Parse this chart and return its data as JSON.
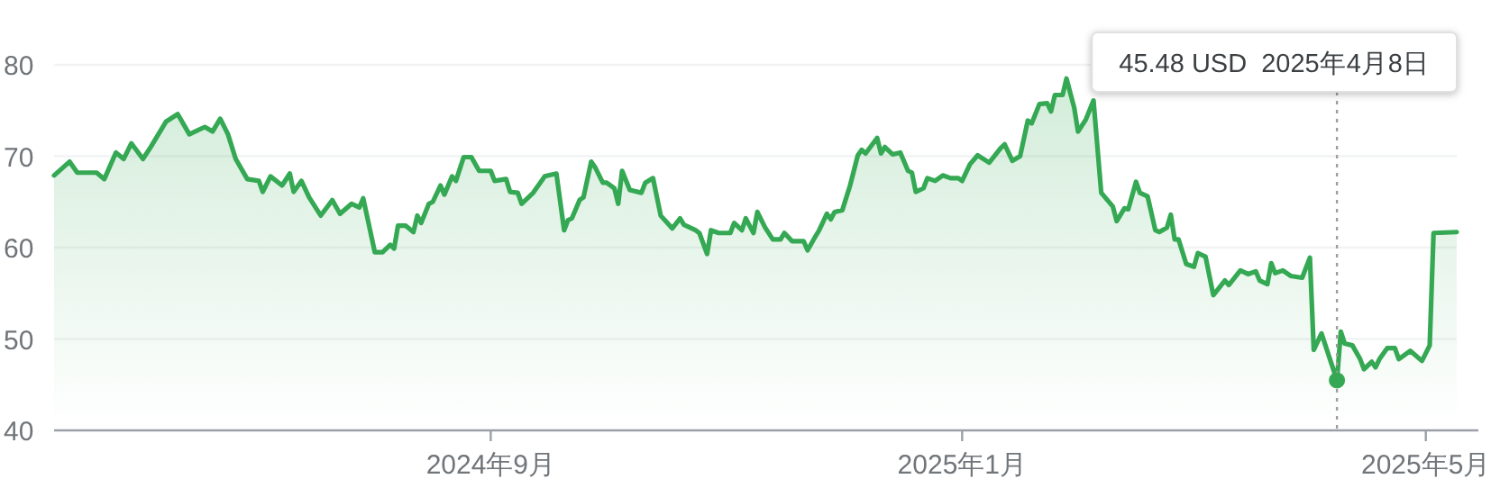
{
  "chart_data": {
    "type": "area",
    "xlim": [
      "2024-05-11",
      "2025-05-09"
    ],
    "ylim": [
      40,
      80
    ],
    "yticks": [
      40,
      50,
      60,
      70,
      80
    ],
    "xticks": [
      {
        "value": "2024-09-01",
        "label": "2024年9月"
      },
      {
        "value": "2025-01-01",
        "label": "2025年1月"
      },
      {
        "value": "2025-05-01",
        "label": "2025年5月"
      }
    ],
    "grid": "y",
    "ref_lines": [
      {
        "axis": "x",
        "value": "2025-04-08",
        "line_style": "dotted",
        "color": "#9e9e9e"
      }
    ],
    "annotations": [
      "45.48 USD  2025年4月8日"
    ],
    "series": [
      {
        "color": "#34a853",
        "x": [
          "2024-05-11",
          "2024-05-15",
          "2024-05-17",
          "2024-05-22",
          "2024-05-24",
          "2024-05-27",
          "2024-05-29",
          "2024-05-31",
          "2024-06-03",
          "2024-06-05",
          "2024-06-09",
          "2024-06-12",
          "2024-06-15",
          "2024-06-19",
          "2024-06-21",
          "2024-06-23",
          "2024-06-25",
          "2024-06-27",
          "2024-06-30",
          "2024-07-03",
          "2024-07-04",
          "2024-07-06",
          "2024-07-09",
          "2024-07-11",
          "2024-07-12",
          "2024-07-14",
          "2024-07-16",
          "2024-07-19",
          "2024-07-22",
          "2024-07-24",
          "2024-07-27",
          "2024-07-29",
          "2024-07-30",
          "2024-08-02",
          "2024-08-04",
          "2024-08-06",
          "2024-08-07",
          "2024-08-08",
          "2024-08-10",
          "2024-08-12",
          "2024-08-13",
          "2024-08-14",
          "2024-08-16",
          "2024-08-17",
          "2024-08-19",
          "2024-08-20",
          "2024-08-22",
          "2024-08-23",
          "2024-08-25",
          "2024-08-27",
          "2024-08-29",
          "2024-09-01",
          "2024-09-02",
          "2024-09-05",
          "2024-09-06",
          "2024-09-08",
          "2024-09-09",
          "2024-09-12",
          "2024-09-15",
          "2024-09-18",
          "2024-09-20",
          "2024-09-21",
          "2024-09-22",
          "2024-09-24",
          "2024-09-25",
          "2024-09-27",
          "2024-09-28",
          "2024-09-30",
          "2024-10-01",
          "2024-10-03",
          "2024-10-04",
          "2024-10-05",
          "2024-10-07",
          "2024-10-10",
          "2024-10-11",
          "2024-10-13",
          "2024-10-15",
          "2024-10-18",
          "2024-10-20",
          "2024-10-21",
          "2024-10-24",
          "2024-10-25",
          "2024-10-27",
          "2024-10-28",
          "2024-10-30",
          "2024-11-02",
          "2024-11-03",
          "2024-11-05",
          "2024-11-06",
          "2024-11-08",
          "2024-11-09",
          "2024-11-11",
          "2024-11-13",
          "2024-11-15",
          "2024-11-16",
          "2024-11-18",
          "2024-11-21",
          "2024-11-22",
          "2024-11-24",
          "2024-11-25",
          "2024-11-27",
          "2024-11-28",
          "2024-11-29",
          "2024-12-01",
          "2024-12-03",
          "2024-12-05",
          "2024-12-06",
          "2024-12-07",
          "2024-12-10",
          "2024-12-11",
          "2024-12-12",
          "2024-12-14",
          "2024-12-16",
          "2024-12-18",
          "2024-12-19",
          "2024-12-20",
          "2024-12-22",
          "2024-12-23",
          "2024-12-25",
          "2024-12-27",
          "2024-12-29",
          "2024-12-31",
          "2025-01-01",
          "2025-01-03",
          "2025-01-05",
          "2025-01-08",
          "2025-01-11",
          "2025-01-12",
          "2025-01-14",
          "2025-01-16",
          "2025-01-18",
          "2025-01-19",
          "2025-01-21",
          "2025-01-23",
          "2025-01-24",
          "2025-01-25",
          "2025-01-27",
          "2025-01-28",
          "2025-01-30",
          "2025-01-31",
          "2025-02-02",
          "2025-02-04",
          "2025-02-06",
          "2025-02-09",
          "2025-02-10",
          "2025-02-12",
          "2025-02-13",
          "2025-02-15",
          "2025-02-16",
          "2025-02-18",
          "2025-02-20",
          "2025-02-21",
          "2025-02-23",
          "2025-02-24",
          "2025-02-25",
          "2025-02-26",
          "2025-02-28",
          "2025-03-02",
          "2025-03-03",
          "2025-03-05",
          "2025-03-07",
          "2025-03-10",
          "2025-03-11",
          "2025-03-14",
          "2025-03-16",
          "2025-03-18",
          "2025-03-19",
          "2025-03-21",
          "2025-03-22",
          "2025-03-23",
          "2025-03-25",
          "2025-03-27",
          "2025-03-30",
          "2025-04-01",
          "2025-04-02",
          "2025-04-04",
          "2025-04-08",
          "2025-04-09",
          "2025-04-10",
          "2025-04-12",
          "2025-04-14",
          "2025-04-15",
          "2025-04-17",
          "2025-04-18",
          "2025-04-19",
          "2025-04-21",
          "2025-04-23",
          "2025-04-24",
          "2025-04-27",
          "2025-04-30",
          "2025-05-02",
          "2025-05-03",
          "2025-05-09"
        ],
        "values": [
          67.9,
          69.4,
          68.2,
          68.2,
          67.5,
          70.4,
          69.7,
          71.4,
          69.7,
          71.0,
          73.8,
          74.6,
          72.4,
          73.2,
          72.7,
          74.1,
          72.4,
          69.7,
          67.5,
          67.3,
          66.1,
          67.8,
          66.8,
          68.1,
          66.1,
          67.3,
          65.5,
          63.5,
          65.2,
          63.7,
          64.8,
          64.4,
          65.4,
          59.5,
          59.5,
          60.3,
          59.9,
          62.4,
          62.4,
          61.7,
          63.5,
          62.7,
          64.8,
          65.0,
          66.8,
          65.8,
          67.8,
          67.3,
          69.9,
          69.9,
          68.4,
          68.4,
          67.3,
          67.5,
          66.1,
          66.0,
          64.8,
          66.0,
          67.8,
          68.1,
          61.9,
          63.0,
          63.2,
          65.2,
          65.5,
          69.4,
          68.8,
          67.1,
          67.1,
          66.5,
          64.8,
          68.4,
          66.3,
          66.0,
          67.1,
          67.6,
          63.5,
          62.1,
          63.2,
          62.5,
          61.9,
          61.6,
          59.3,
          61.9,
          61.6,
          61.6,
          62.7,
          61.9,
          63.2,
          61.6,
          63.9,
          62.2,
          60.9,
          60.9,
          61.6,
          60.7,
          60.7,
          59.7,
          61.2,
          61.9,
          63.7,
          63.1,
          63.9,
          64.1,
          66.8,
          70.1,
          70.7,
          70.3,
          72.0,
          70.3,
          71.0,
          70.2,
          70.4,
          68.4,
          68.2,
          66.1,
          66.5,
          67.6,
          67.3,
          67.9,
          67.6,
          67.6,
          67.3,
          69.1,
          70.1,
          69.3,
          70.9,
          71.3,
          69.5,
          70.0,
          73.9,
          73.6,
          75.7,
          75.8,
          74.9,
          76.7,
          76.7,
          78.5,
          75.3,
          72.7,
          74.0,
          76.1,
          66.0,
          64.5,
          62.9,
          64.3,
          64.2,
          67.2,
          66.0,
          65.6,
          61.9,
          61.7,
          62.2,
          63.6,
          60.9,
          60.9,
          58.2,
          57.9,
          59.4,
          59.0,
          54.8,
          56.4,
          55.9,
          57.5,
          57.1,
          57.4,
          56.4,
          56.0,
          58.3,
          57.2,
          57.5,
          56.9,
          56.7,
          58.9,
          48.8,
          50.6,
          45.48,
          50.8,
          49.5,
          49.3,
          47.8,
          46.7,
          47.5,
          46.9,
          47.8,
          49.0,
          49.0,
          47.8,
          48.7,
          47.6,
          49.3,
          61.6,
          61.7
        ]
      }
    ]
  }
}
